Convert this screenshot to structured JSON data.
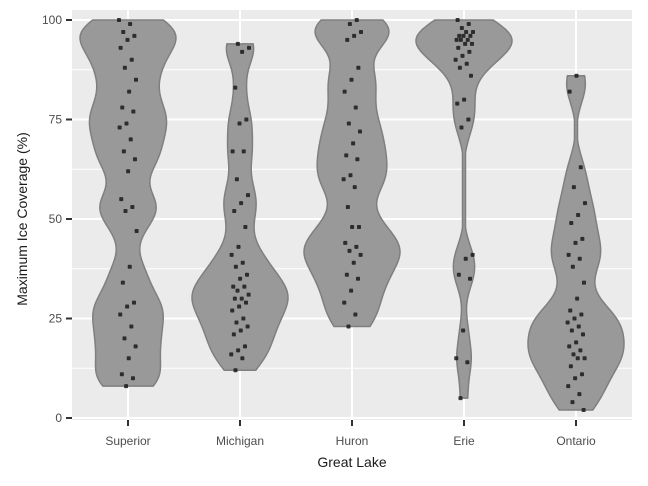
{
  "chart_data": {
    "type": "violin",
    "title": "",
    "xlabel": "Great Lake",
    "ylabel": "Maximum Ice Coverage (%)",
    "ylim": [
      0,
      100
    ],
    "yticks": [
      0,
      25,
      50,
      75,
      100
    ],
    "grid": true,
    "legend": "none",
    "colors": {
      "panel": "#ebebeb",
      "grid": "#ffffff",
      "violin_fill": "#999999",
      "violin_stroke": "#7f7f7f",
      "point": "#1a1a1a"
    },
    "categories": [
      "Superior",
      "Michigan",
      "Huron",
      "Erie",
      "Ontario"
    ],
    "series": [
      {
        "category": "Superior",
        "values": [
          100,
          99,
          97,
          96,
          95,
          93,
          90,
          88,
          85,
          82,
          78,
          77,
          74,
          73,
          70,
          67,
          65,
          62,
          55,
          53,
          52,
          47,
          38,
          34,
          29,
          28,
          26,
          23,
          20,
          18,
          15,
          11,
          10,
          8
        ]
      },
      {
        "category": "Michigan",
        "values": [
          94,
          93,
          92,
          83,
          75,
          74,
          67,
          67,
          60,
          56,
          54,
          52,
          48,
          43,
          41,
          39,
          38,
          36,
          35,
          33,
          33,
          32,
          31,
          30,
          30,
          29,
          28,
          27,
          25,
          24,
          23,
          22,
          21,
          18,
          17,
          16,
          15,
          12
        ]
      },
      {
        "category": "Huron",
        "values": [
          100,
          99,
          97,
          96,
          95,
          88,
          85,
          82,
          78,
          74,
          72,
          69,
          66,
          65,
          61,
          60,
          58,
          53,
          48,
          48,
          44,
          43,
          42,
          41,
          39,
          36,
          35,
          32,
          29,
          26,
          23
        ]
      },
      {
        "category": "Erie",
        "values": [
          100,
          99,
          98,
          97,
          97,
          96,
          96,
          96,
          95,
          95,
          95,
          94,
          94,
          93,
          92,
          91,
          90,
          89,
          88,
          86,
          80,
          79,
          75,
          73,
          41,
          40,
          36,
          35,
          22,
          15,
          14,
          5
        ]
      },
      {
        "category": "Ontario",
        "values": [
          86,
          82,
          63,
          58,
          54,
          51,
          49,
          45,
          44,
          41,
          40,
          38,
          34,
          30,
          27,
          26,
          25,
          24,
          23,
          22,
          21,
          19,
          18,
          17,
          16,
          15,
          15,
          13,
          11,
          10,
          8,
          6,
          4,
          2
        ]
      }
    ]
  }
}
